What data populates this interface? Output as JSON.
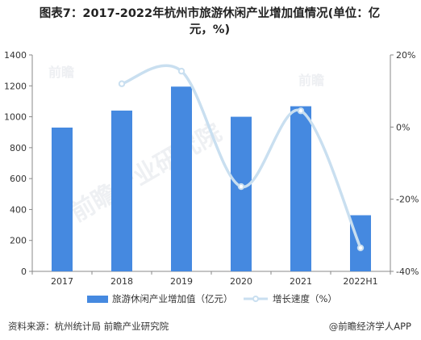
{
  "title": {
    "line1": "图表7：2017-2022年杭州市旅游休闲产业增加值情况(单位：亿",
    "line2": "元，%)"
  },
  "footer": {
    "source": "资料来源：杭州统计局 前瞻产业研究院",
    "brand": "@前瞻经济学人APP"
  },
  "watermark": {
    "text": "前瞻产业研究院",
    "small": "前瞻"
  },
  "colors": {
    "bar": "#4589e0",
    "line": "#c9dff0",
    "axis": "#888888",
    "text": "#333333"
  },
  "chart_data": {
    "type": "bar",
    "categories": [
      "2017",
      "2018",
      "2019",
      "2020",
      "2021",
      "2022H1"
    ],
    "series": [
      {
        "name": "旅游休闲产业增加值（亿元）",
        "type": "bar",
        "axis": "left",
        "values": [
          930,
          1040,
          1195,
          1000,
          1068,
          363
        ]
      },
      {
        "name": "增长速度（%）",
        "type": "line",
        "axis": "right",
        "values": [
          null,
          12.0,
          15.5,
          -16.5,
          4.5,
          -33.5
        ]
      }
    ],
    "y_left": {
      "ylim": [
        0,
        1400
      ],
      "ticks": [
        "0",
        "200",
        "400",
        "600",
        "800",
        "1000",
        "1200",
        "1400"
      ]
    },
    "y_right": {
      "ylim": [
        -40,
        20
      ],
      "ticks": [
        "-40%",
        "-20%",
        "0%",
        "20%"
      ]
    },
    "grid": false,
    "legend": "bottom"
  }
}
